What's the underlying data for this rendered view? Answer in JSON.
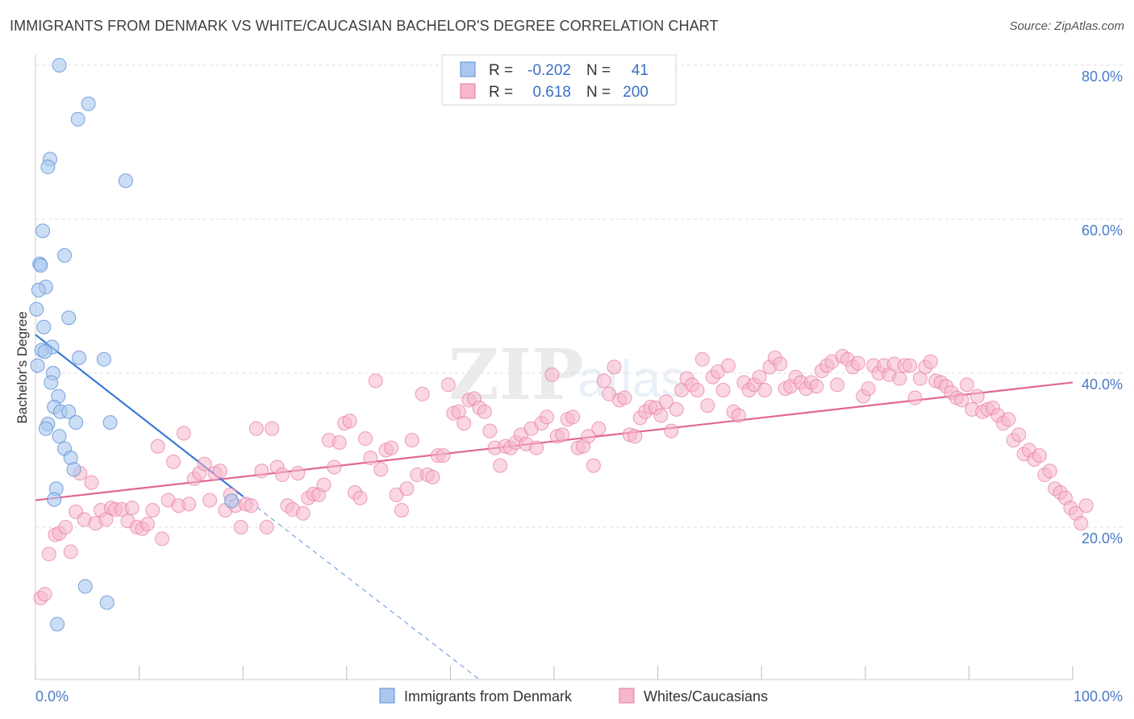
{
  "title": "IMMIGRANTS FROM DENMARK VS WHITE/CAUCASIAN BACHELOR'S DEGREE CORRELATION CHART",
  "source": "Source: ZipAtlas.com",
  "watermark": {
    "zip": "ZIP",
    "atlas": "atlas"
  },
  "colors": {
    "blue_fill": "#aac8ef",
    "blue_stroke": "#5b8fd6",
    "blue_line": "#3a78d4",
    "pink_fill": "#f6b6cb",
    "pink_stroke": "#e7799e",
    "pink_line": "#e0688f",
    "grid": "#dddddd",
    "tick_text": "#4a7cc9"
  },
  "legend": {
    "rows": [
      {
        "r_label": "R =",
        "r_value": "-0.202",
        "n_label": "N =",
        "n_value": "41"
      },
      {
        "r_label": "R =",
        "r_value": "0.618",
        "n_label": "N =",
        "n_value": "200"
      }
    ]
  },
  "bottom_legend": {
    "items": [
      {
        "label": "Immigrants from Denmark"
      },
      {
        "label": "Whites/Caucasians"
      }
    ]
  },
  "chart_data": {
    "type": "scatter",
    "title": "IMMIGRANTS FROM DENMARK VS WHITE/CAUCASIAN BACHELOR'S DEGREE CORRELATION CHART",
    "xlabel": "",
    "ylabel": "Bachelor's Degree",
    "xlim": [
      0,
      100
    ],
    "ylim": [
      0,
      82
    ],
    "x_tick_labels": [
      "0.0%",
      "100.0%"
    ],
    "y_ticks": [
      20,
      40,
      60,
      80
    ],
    "y_tick_labels": [
      "20.0%",
      "40.0%",
      "60.0%",
      "80.0%"
    ],
    "series": [
      {
        "name": "Immigrants from Denmark",
        "r": -0.202,
        "n": 41,
        "trend": {
          "x0": 0,
          "y0": 45.0,
          "x1": 20,
          "y1": 24.0,
          "dash_x1": 43,
          "dash_y1": 0
        },
        "points": [
          [
            2.3,
            80.0
          ],
          [
            5.1,
            75.0
          ],
          [
            4.1,
            73.0
          ],
          [
            1.4,
            67.8
          ],
          [
            1.2,
            66.8
          ],
          [
            8.7,
            65.0
          ],
          [
            0.7,
            58.5
          ],
          [
            2.8,
            55.3
          ],
          [
            0.4,
            54.2
          ],
          [
            0.5,
            54.0
          ],
          [
            1.0,
            51.2
          ],
          [
            0.3,
            50.8
          ],
          [
            0.1,
            48.3
          ],
          [
            3.2,
            47.2
          ],
          [
            0.8,
            46.0
          ],
          [
            1.6,
            43.4
          ],
          [
            0.6,
            43.0
          ],
          [
            0.9,
            42.8
          ],
          [
            0.2,
            41.0
          ],
          [
            4.2,
            42.0
          ],
          [
            6.6,
            41.8
          ],
          [
            1.7,
            40.0
          ],
          [
            1.5,
            38.8
          ],
          [
            2.2,
            37.0
          ],
          [
            1.8,
            35.6
          ],
          [
            2.4,
            35.0
          ],
          [
            3.2,
            35.0
          ],
          [
            3.9,
            33.6
          ],
          [
            7.2,
            33.6
          ],
          [
            1.2,
            33.4
          ],
          [
            1.0,
            32.8
          ],
          [
            2.3,
            31.8
          ],
          [
            2.8,
            30.2
          ],
          [
            3.4,
            29.0
          ],
          [
            3.7,
            27.5
          ],
          [
            2.0,
            25.0
          ],
          [
            1.8,
            23.6
          ],
          [
            18.9,
            23.4
          ],
          [
            4.8,
            12.3
          ],
          [
            6.9,
            10.2
          ],
          [
            2.1,
            7.4
          ]
        ]
      },
      {
        "name": "Whites/Caucasians",
        "r": 0.618,
        "n": 200,
        "trend": {
          "x0": 0,
          "y0": 23.5,
          "x1": 100,
          "y1": 38.8
        },
        "points": [
          [
            0.5,
            10.8
          ],
          [
            0.9,
            11.3
          ],
          [
            1.3,
            16.5
          ],
          [
            1.9,
            19.0
          ],
          [
            2.3,
            19.2
          ],
          [
            2.9,
            20.0
          ],
          [
            3.4,
            16.8
          ],
          [
            3.9,
            22.0
          ],
          [
            4.3,
            27.0
          ],
          [
            4.7,
            21.0
          ],
          [
            5.4,
            25.8
          ],
          [
            5.8,
            20.5
          ],
          [
            6.3,
            22.2
          ],
          [
            6.8,
            21.0
          ],
          [
            7.3,
            22.5
          ],
          [
            7.7,
            22.3
          ],
          [
            8.3,
            22.3
          ],
          [
            8.9,
            20.8
          ],
          [
            9.3,
            22.5
          ],
          [
            9.8,
            20.0
          ],
          [
            10.3,
            19.8
          ],
          [
            10.8,
            20.4
          ],
          [
            11.3,
            22.2
          ],
          [
            11.8,
            30.5
          ],
          [
            12.2,
            18.5
          ],
          [
            12.8,
            23.5
          ],
          [
            13.3,
            28.5
          ],
          [
            13.8,
            22.8
          ],
          [
            14.3,
            32.2
          ],
          [
            14.8,
            23.0
          ],
          [
            15.3,
            26.3
          ],
          [
            15.8,
            27.0
          ],
          [
            16.3,
            28.2
          ],
          [
            16.8,
            23.5
          ],
          [
            17.3,
            27.0
          ],
          [
            17.8,
            27.3
          ],
          [
            18.3,
            22.2
          ],
          [
            18.8,
            24.2
          ],
          [
            19.3,
            22.8
          ],
          [
            19.8,
            20.0
          ],
          [
            20.3,
            23.0
          ],
          [
            20.8,
            22.8
          ],
          [
            21.3,
            32.8
          ],
          [
            21.8,
            27.3
          ],
          [
            22.3,
            20.0
          ],
          [
            22.8,
            32.8
          ],
          [
            23.3,
            27.8
          ],
          [
            23.8,
            26.8
          ],
          [
            24.3,
            22.8
          ],
          [
            24.8,
            22.3
          ],
          [
            25.3,
            27.0
          ],
          [
            25.8,
            21.8
          ],
          [
            26.3,
            23.8
          ],
          [
            26.8,
            24.3
          ],
          [
            27.3,
            24.2
          ],
          [
            27.8,
            25.5
          ],
          [
            28.3,
            31.3
          ],
          [
            28.8,
            27.8
          ],
          [
            29.3,
            31.0
          ],
          [
            29.8,
            33.5
          ],
          [
            30.3,
            33.8
          ],
          [
            30.8,
            24.5
          ],
          [
            31.3,
            23.8
          ],
          [
            31.8,
            31.5
          ],
          [
            32.3,
            29.0
          ],
          [
            32.8,
            39.0
          ],
          [
            33.3,
            27.5
          ],
          [
            33.8,
            30.0
          ],
          [
            34.3,
            30.3
          ],
          [
            34.8,
            24.2
          ],
          [
            35.3,
            22.2
          ],
          [
            35.8,
            25.0
          ],
          [
            36.3,
            31.3
          ],
          [
            36.8,
            26.8
          ],
          [
            37.3,
            37.3
          ],
          [
            37.8,
            26.8
          ],
          [
            38.3,
            26.5
          ],
          [
            38.8,
            29.3
          ],
          [
            39.3,
            29.3
          ],
          [
            39.8,
            38.5
          ],
          [
            40.3,
            34.8
          ],
          [
            40.8,
            35.0
          ],
          [
            41.3,
            33.5
          ],
          [
            41.8,
            36.5
          ],
          [
            42.3,
            36.7
          ],
          [
            42.8,
            35.5
          ],
          [
            43.3,
            35.0
          ],
          [
            43.8,
            32.5
          ],
          [
            44.3,
            30.3
          ],
          [
            44.8,
            28.0
          ],
          [
            45.3,
            30.5
          ],
          [
            45.8,
            30.3
          ],
          [
            46.3,
            31.0
          ],
          [
            46.8,
            32.0
          ],
          [
            47.3,
            30.8
          ],
          [
            47.8,
            32.8
          ],
          [
            48.3,
            30.3
          ],
          [
            48.8,
            33.5
          ],
          [
            49.3,
            34.3
          ],
          [
            49.8,
            39.8
          ],
          [
            50.3,
            31.8
          ],
          [
            50.8,
            32.0
          ],
          [
            51.3,
            34.0
          ],
          [
            51.8,
            34.3
          ],
          [
            52.3,
            30.3
          ],
          [
            52.8,
            30.5
          ],
          [
            53.3,
            31.8
          ],
          [
            53.8,
            28.0
          ],
          [
            54.3,
            32.8
          ],
          [
            54.8,
            39.0
          ],
          [
            55.3,
            37.3
          ],
          [
            55.8,
            40.8
          ],
          [
            56.3,
            36.5
          ],
          [
            56.8,
            36.8
          ],
          [
            57.3,
            32.0
          ],
          [
            57.8,
            31.8
          ],
          [
            58.3,
            34.2
          ],
          [
            58.8,
            35.0
          ],
          [
            59.3,
            35.6
          ],
          [
            59.8,
            35.5
          ],
          [
            60.3,
            34.5
          ],
          [
            60.8,
            36.3
          ],
          [
            61.3,
            32.5
          ],
          [
            61.8,
            35.3
          ],
          [
            62.3,
            37.8
          ],
          [
            62.8,
            39.3
          ],
          [
            63.3,
            38.5
          ],
          [
            63.8,
            37.8
          ],
          [
            64.3,
            41.8
          ],
          [
            64.8,
            35.8
          ],
          [
            65.3,
            39.5
          ],
          [
            65.8,
            40.2
          ],
          [
            66.3,
            37.8
          ],
          [
            66.8,
            41.0
          ],
          [
            67.3,
            35.0
          ],
          [
            67.8,
            34.5
          ],
          [
            68.3,
            38.8
          ],
          [
            68.8,
            37.8
          ],
          [
            69.3,
            38.5
          ],
          [
            69.8,
            39.5
          ],
          [
            70.3,
            37.8
          ],
          [
            70.8,
            40.8
          ],
          [
            71.3,
            42.0
          ],
          [
            71.8,
            41.2
          ],
          [
            72.3,
            38.0
          ],
          [
            72.8,
            38.3
          ],
          [
            73.3,
            39.5
          ],
          [
            73.8,
            38.8
          ],
          [
            74.3,
            38.0
          ],
          [
            74.8,
            38.8
          ],
          [
            75.3,
            38.3
          ],
          [
            75.8,
            40.3
          ],
          [
            76.3,
            41.0
          ],
          [
            76.8,
            41.5
          ],
          [
            77.3,
            38.5
          ],
          [
            77.8,
            42.2
          ],
          [
            78.3,
            41.8
          ],
          [
            78.8,
            40.8
          ],
          [
            79.3,
            41.3
          ],
          [
            79.8,
            37.0
          ],
          [
            80.3,
            38.0
          ],
          [
            80.8,
            41.0
          ],
          [
            81.3,
            40.0
          ],
          [
            81.8,
            41.0
          ],
          [
            82.3,
            39.8
          ],
          [
            82.8,
            41.2
          ],
          [
            83.3,
            39.3
          ],
          [
            83.8,
            41.0
          ],
          [
            84.3,
            41.0
          ],
          [
            84.8,
            36.8
          ],
          [
            85.3,
            39.3
          ],
          [
            85.8,
            40.8
          ],
          [
            86.3,
            41.5
          ],
          [
            86.8,
            39.0
          ],
          [
            87.3,
            38.8
          ],
          [
            87.8,
            38.3
          ],
          [
            88.3,
            37.5
          ],
          [
            88.8,
            36.8
          ],
          [
            89.3,
            36.5
          ],
          [
            89.8,
            38.5
          ],
          [
            90.3,
            35.3
          ],
          [
            90.8,
            37.0
          ],
          [
            91.3,
            35.0
          ],
          [
            91.8,
            35.3
          ],
          [
            92.3,
            35.5
          ],
          [
            92.8,
            34.5
          ],
          [
            93.3,
            33.5
          ],
          [
            93.8,
            34.0
          ],
          [
            94.3,
            31.3
          ],
          [
            94.8,
            32.0
          ],
          [
            95.3,
            29.5
          ],
          [
            95.8,
            30.0
          ],
          [
            96.3,
            28.8
          ],
          [
            96.8,
            29.3
          ],
          [
            97.3,
            26.8
          ],
          [
            97.8,
            27.3
          ],
          [
            98.3,
            25.0
          ],
          [
            98.8,
            24.5
          ],
          [
            99.3,
            23.8
          ],
          [
            99.8,
            22.5
          ],
          [
            100.3,
            21.8
          ],
          [
            100.8,
            20.5
          ],
          [
            101.3,
            22.8
          ]
        ]
      }
    ]
  }
}
